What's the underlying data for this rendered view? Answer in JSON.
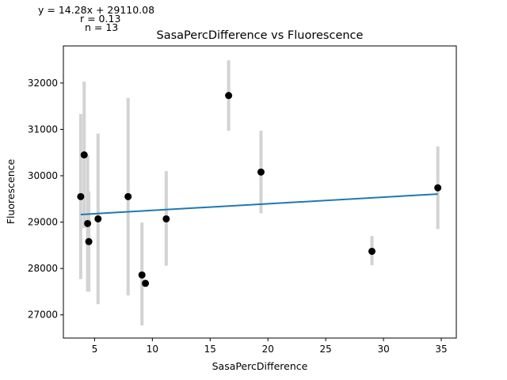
{
  "chart_data": {
    "type": "scatter",
    "title": "SasaPercDifference vs Fluorescence",
    "xlabel": "SasaPercDifference",
    "ylabel": "Fluorescence",
    "xlim": [
      2.3,
      36.3
    ],
    "ylim": [
      26500,
      32800
    ],
    "x_ticks": [
      5,
      10,
      15,
      20,
      25,
      30,
      35
    ],
    "y_ticks": [
      27000,
      28000,
      29000,
      30000,
      31000,
      32000
    ],
    "grid": false,
    "annotations": {
      "equation": "y = 14.28x + 29110.08",
      "r": "r = 0.13",
      "n": "n = 13"
    },
    "points": [
      {
        "x": 3.8,
        "y": 29550,
        "err_low": 27770,
        "err_high": 31330
      },
      {
        "x": 4.1,
        "y": 30450,
        "err_low": 28870,
        "err_high": 32030
      },
      {
        "x": 4.4,
        "y": 28970,
        "err_low": 27500,
        "err_high": 30440
      },
      {
        "x": 4.5,
        "y": 28580,
        "err_low": 27500,
        "err_high": 29660
      },
      {
        "x": 5.3,
        "y": 29070,
        "err_low": 27230,
        "err_high": 30910
      },
      {
        "x": 7.9,
        "y": 29550,
        "err_low": 27420,
        "err_high": 31680
      },
      {
        "x": 9.1,
        "y": 27860,
        "err_low": 26770,
        "err_high": 28990
      },
      {
        "x": 9.4,
        "y": 27680,
        "err_low": 27610,
        "err_high": 27750
      },
      {
        "x": 11.2,
        "y": 29070,
        "err_low": 28060,
        "err_high": 30100
      },
      {
        "x": 16.6,
        "y": 31730,
        "err_low": 30970,
        "err_high": 32490
      },
      {
        "x": 19.4,
        "y": 30080,
        "err_low": 29190,
        "err_high": 30970
      },
      {
        "x": 29.0,
        "y": 28370,
        "err_low": 28070,
        "err_high": 28700
      },
      {
        "x": 34.7,
        "y": 29740,
        "err_low": 28850,
        "err_high": 30630
      }
    ],
    "regression": {
      "slope": 14.28,
      "intercept": 29110.08,
      "x_range": [
        3.8,
        34.7
      ]
    },
    "colors": {
      "points": "#000000",
      "error_bars": "#d3d3d3",
      "fit_line": "#1f77b4"
    }
  }
}
